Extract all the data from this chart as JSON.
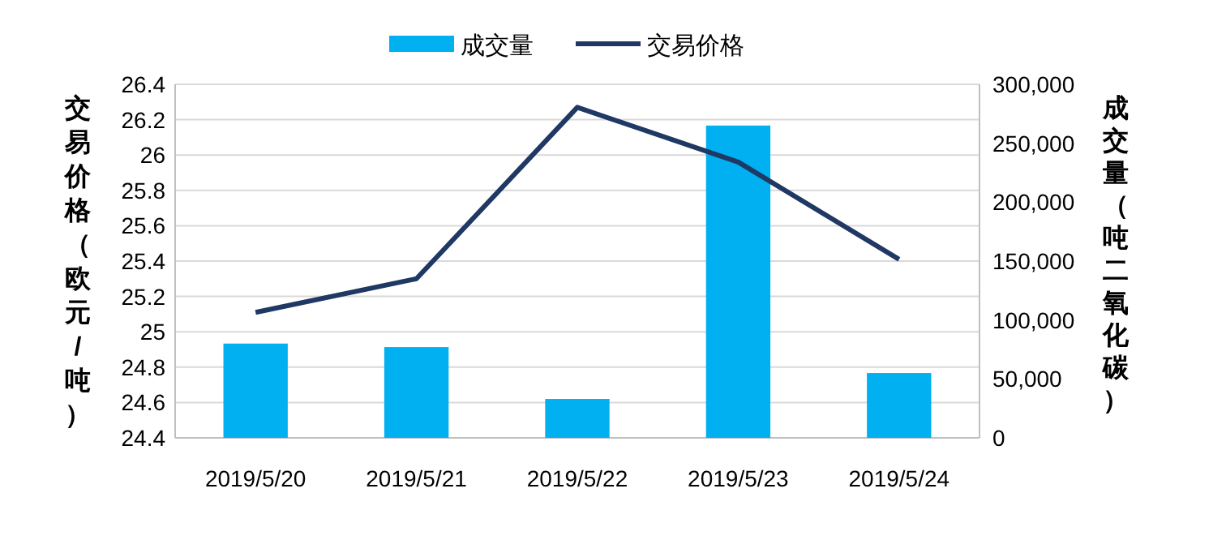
{
  "chart_data": {
    "type": "bar",
    "categories": [
      "2019/5/20",
      "2019/5/21",
      "2019/5/22",
      "2019/5/23",
      "2019/5/24"
    ],
    "series": [
      {
        "name": "成交量",
        "axis": "y2",
        "color": "#00b0f0",
        "values": [
          80000,
          77000,
          33000,
          265000,
          55000
        ]
      },
      {
        "name": "交易价格",
        "type": "line",
        "axis": "y",
        "color": "#1f3864",
        "values": [
          25.11,
          25.3,
          26.27,
          25.96,
          25.41
        ]
      }
    ],
    "ylim": [
      24.4,
      26.4
    ],
    "yticks": [
      24.4,
      24.6,
      24.8,
      25,
      25.2,
      25.4,
      25.6,
      25.8,
      26,
      26.2,
      26.4
    ],
    "y2lim": [
      0,
      300000
    ],
    "y2ticks": [
      0,
      {
        "value": 50000,
        "label": "50,000"
      },
      {
        "value": 100000,
        "label": "100,000"
      },
      {
        "value": 150000,
        "label": "150,000"
      },
      {
        "value": 200000,
        "label": "200,000"
      },
      {
        "value": 250000,
        "label": "250,000"
      },
      {
        "value": 300000,
        "label": "300,000"
      }
    ],
    "ylabel": "交易价格（欧元/吨）",
    "y2label": "成交量（吨二氧化碳）",
    "grid": "y",
    "legend": "top"
  }
}
